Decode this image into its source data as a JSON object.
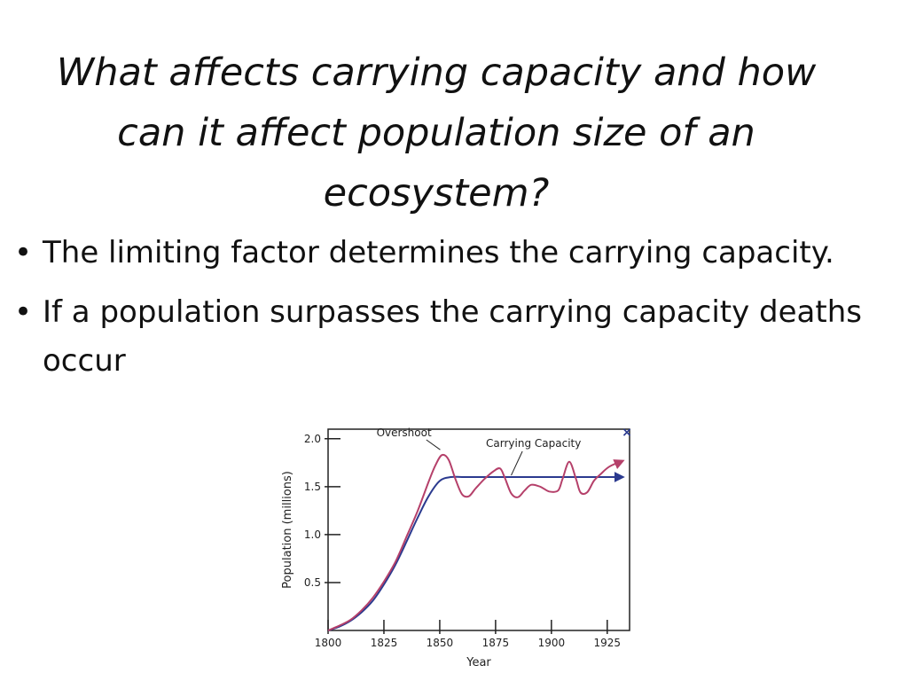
{
  "slide": {
    "title": "What affects carrying capacity and how can it affect population size of an ecosystem?",
    "bullets": [
      "The limiting factor determines the carrying capacity.",
      "If a population surpasses the carrying capacity deaths occur"
    ],
    "bullet_glyph": "•"
  },
  "chart_data": {
    "type": "line",
    "title": "",
    "xlabel": "Year",
    "ylabel": "Population (millions)",
    "xlim": [
      1800,
      1935
    ],
    "ylim": [
      0,
      2.1
    ],
    "xticks": [
      1800,
      1825,
      1850,
      1875,
      1900,
      1925
    ],
    "yticks": [
      0.5,
      1.0,
      1.5,
      2.0
    ],
    "ytick_labels": [
      "0.5",
      "1.0",
      "1.5",
      "2.0"
    ],
    "grid": false,
    "annotations": [
      "Overshoot",
      "Carrying Capacity"
    ],
    "marker_glyph": "×",
    "series": [
      {
        "name": "Carrying Capacity",
        "color": "#2b3a8f",
        "x": [
          1800,
          1805,
          1810,
          1815,
          1820,
          1825,
          1830,
          1835,
          1840,
          1845,
          1850,
          1855,
          1860,
          1870,
          1880,
          1890,
          1900,
          1910,
          1920,
          1932
        ],
        "values": [
          0.0,
          0.04,
          0.1,
          0.19,
          0.31,
          0.48,
          0.68,
          0.92,
          1.17,
          1.4,
          1.56,
          1.6,
          1.6,
          1.6,
          1.6,
          1.6,
          1.6,
          1.6,
          1.6,
          1.6
        ]
      },
      {
        "name": "Population",
        "color": "#b5406a",
        "x": [
          1800,
          1805,
          1810,
          1815,
          1820,
          1825,
          1830,
          1835,
          1840,
          1845,
          1848,
          1851,
          1854,
          1857,
          1860,
          1863,
          1866,
          1870,
          1874,
          1877,
          1879,
          1882,
          1885,
          1888,
          1891,
          1895,
          1899,
          1903,
          1905,
          1908,
          1911,
          1913,
          1916,
          1919,
          1922,
          1926,
          1932
        ],
        "values": [
          0.0,
          0.05,
          0.11,
          0.21,
          0.34,
          0.51,
          0.71,
          0.97,
          1.24,
          1.55,
          1.72,
          1.83,
          1.78,
          1.58,
          1.42,
          1.4,
          1.48,
          1.58,
          1.66,
          1.69,
          1.6,
          1.43,
          1.39,
          1.46,
          1.52,
          1.5,
          1.45,
          1.46,
          1.58,
          1.76,
          1.58,
          1.44,
          1.44,
          1.56,
          1.63,
          1.71,
          1.77
        ]
      }
    ]
  }
}
